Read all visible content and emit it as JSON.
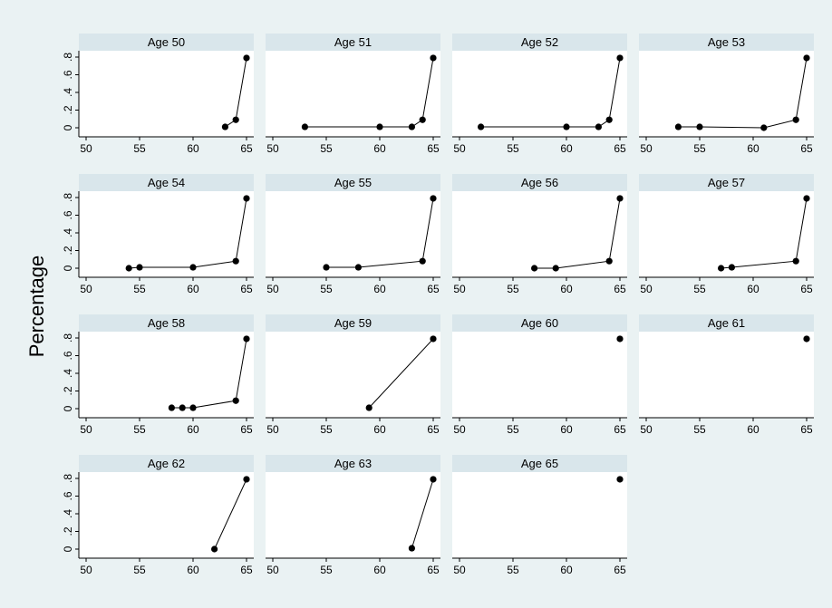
{
  "chart_data": {
    "type": "scatter",
    "ylabel": "Percentage",
    "xlabel": "",
    "xlim": [
      50,
      65
    ],
    "ylim": [
      0,
      0.8
    ],
    "x_ticks": [
      "50",
      "55",
      "60",
      "65"
    ],
    "y_ticks": [
      "0",
      ".2",
      ".4",
      ".6",
      ".8"
    ],
    "grid": false,
    "style": "connected markers",
    "colors": {
      "outer_background": "#eaf2f3",
      "plot_background": "#ffffff",
      "strip": "#d9e6eb",
      "marker": "#000000"
    },
    "panels": [
      {
        "title": "Age 50",
        "x": [
          63,
          64,
          65
        ],
        "y": [
          0.01,
          0.09,
          0.79
        ]
      },
      {
        "title": "Age 51",
        "x": [
          53,
          60,
          63,
          64,
          65
        ],
        "y": [
          0.01,
          0.01,
          0.01,
          0.09,
          0.79
        ]
      },
      {
        "title": "Age 52",
        "x": [
          52,
          60,
          63,
          64,
          65
        ],
        "y": [
          0.01,
          0.01,
          0.01,
          0.09,
          0.79
        ]
      },
      {
        "title": "Age 53",
        "x": [
          53,
          55,
          61,
          64,
          65
        ],
        "y": [
          0.01,
          0.01,
          0.0,
          0.09,
          0.79
        ]
      },
      {
        "title": "Age 54",
        "x": [
          54,
          55,
          60,
          64,
          65
        ],
        "y": [
          0.0,
          0.01,
          0.01,
          0.08,
          0.79
        ]
      },
      {
        "title": "Age 55",
        "x": [
          55,
          58,
          64,
          65
        ],
        "y": [
          0.01,
          0.01,
          0.08,
          0.79
        ]
      },
      {
        "title": "Age 56",
        "x": [
          57,
          59,
          64,
          65
        ],
        "y": [
          0.0,
          0.0,
          0.08,
          0.79
        ]
      },
      {
        "title": "Age 57",
        "x": [
          57,
          58,
          64,
          65
        ],
        "y": [
          0.0,
          0.01,
          0.08,
          0.79
        ]
      },
      {
        "title": "Age 58",
        "x": [
          58,
          59,
          60,
          64,
          65
        ],
        "y": [
          0.01,
          0.01,
          0.01,
          0.09,
          0.79
        ]
      },
      {
        "title": "Age 59",
        "x": [
          59,
          65
        ],
        "y": [
          0.01,
          0.79
        ]
      },
      {
        "title": "Age 60",
        "x": [
          65
        ],
        "y": [
          0.79
        ]
      },
      {
        "title": "Age 61",
        "x": [
          65
        ],
        "y": [
          0.79
        ]
      },
      {
        "title": "Age 62",
        "x": [
          62,
          65
        ],
        "y": [
          0.0,
          0.79
        ]
      },
      {
        "title": "Age 63",
        "x": [
          63,
          65
        ],
        "y": [
          0.01,
          0.79
        ]
      },
      {
        "title": "Age 65",
        "x": [
          65
        ],
        "y": [
          0.79
        ]
      }
    ]
  }
}
